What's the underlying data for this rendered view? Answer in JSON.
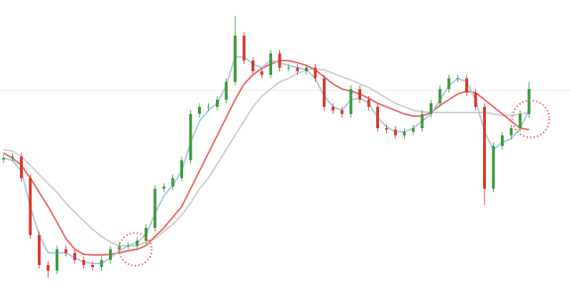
{
  "chart_data": {
    "type": "candlestick",
    "x": [
      0,
      1,
      2,
      3,
      4,
      5,
      6,
      7,
      8,
      9,
      10,
      11,
      12,
      13,
      14,
      15,
      16,
      17,
      18,
      19,
      20,
      21,
      22,
      23,
      24,
      25,
      26,
      27,
      28,
      29,
      30,
      31,
      32,
      33,
      34,
      35,
      36,
      37,
      38,
      39,
      40,
      41,
      42,
      43,
      44,
      45,
      46,
      47,
      48,
      49,
      50,
      51,
      52,
      53,
      54,
      55,
      56,
      57,
      58,
      59
    ],
    "open": [
      186,
      188,
      190,
      160,
      80,
      38,
      30,
      60,
      55,
      45,
      38,
      35,
      45,
      60,
      65,
      65,
      72,
      90,
      145,
      148,
      160,
      185,
      250,
      260,
      260,
      270,
      295,
      360,
      325,
      310,
      305,
      335,
      315,
      315,
      310,
      315,
      300,
      260,
      255,
      250,
      285,
      270,
      260,
      230,
      228,
      220,
      225,
      230,
      250,
      265,
      285,
      300,
      300,
      280,
      260,
      145,
      205,
      220,
      230,
      250
    ],
    "high": [
      193,
      195,
      195,
      165,
      85,
      43,
      65,
      65,
      60,
      50,
      43,
      50,
      65,
      70,
      70,
      77,
      95,
      150,
      153,
      165,
      190,
      255,
      265,
      265,
      275,
      300,
      388,
      365,
      330,
      315,
      340,
      340,
      320,
      320,
      320,
      320,
      305,
      265,
      260,
      290,
      290,
      275,
      265,
      235,
      233,
      230,
      235,
      255,
      270,
      290,
      305,
      305,
      305,
      285,
      265,
      210,
      225,
      235,
      255,
      295
    ],
    "low": [
      181,
      183,
      155,
      75,
      33,
      20,
      25,
      50,
      40,
      33,
      30,
      30,
      40,
      55,
      60,
      60,
      67,
      85,
      140,
      143,
      155,
      180,
      245,
      255,
      255,
      265,
      290,
      320,
      305,
      300,
      300,
      310,
      310,
      305,
      305,
      295,
      255,
      250,
      245,
      245,
      265,
      255,
      225,
      223,
      215,
      215,
      220,
      225,
      245,
      260,
      280,
      295,
      275,
      255,
      122,
      140,
      200,
      215,
      225,
      245
    ],
    "close": [
      188,
      190,
      160,
      80,
      38,
      30,
      60,
      55,
      45,
      38,
      35,
      45,
      60,
      65,
      65,
      72,
      90,
      145,
      148,
      160,
      185,
      250,
      260,
      260,
      270,
      295,
      360,
      325,
      310,
      305,
      335,
      315,
      315,
      310,
      315,
      300,
      260,
      255,
      250,
      285,
      270,
      260,
      230,
      228,
      220,
      225,
      230,
      250,
      265,
      285,
      300,
      300,
      280,
      260,
      145,
      205,
      220,
      230,
      250,
      285
    ],
    "up_color": "#3f9a3f",
    "down_color": "#d9382c",
    "series": [
      {
        "color": "#cfcfcf",
        "values": [
          200,
          198,
          190,
          178,
          165,
          152,
          140,
          125,
          112,
          100,
          88,
          78,
          70,
          65,
          65,
          65,
          70,
          75,
          85,
          95,
          108,
          125,
          145,
          160,
          180,
          200,
          220,
          240,
          260,
          275,
          285,
          295,
          300,
          307,
          312,
          313,
          312,
          307,
          302,
          298,
          292,
          287,
          280,
          272,
          265,
          260,
          255,
          253,
          252,
          252,
          252,
          252,
          252,
          252,
          252,
          250,
          248,
          248,
          250,
          252
        ]
      },
      {
        "color": "#f06464",
        "values": [
          195,
          188,
          178,
          160,
          140,
          120,
          98,
          75,
          60,
          53,
          52,
          52,
          53,
          55,
          58,
          60,
          65,
          78,
          90,
          105,
          120,
          145,
          170,
          195,
          220,
          245,
          270,
          292,
          305,
          314,
          320,
          325,
          325,
          322,
          318,
          312,
          302,
          292,
          285,
          282,
          278,
          272,
          265,
          260,
          255,
          250,
          247,
          247,
          252,
          262,
          270,
          278,
          282,
          280,
          270,
          260,
          250,
          240,
          230,
          228
        ]
      },
      {
        "color": "#a9c9e6",
        "values": [
          188,
          185,
          170,
          120,
          80,
          55,
          55,
          55,
          48,
          42,
          40,
          40,
          48,
          58,
          65,
          70,
          80,
          110,
          135,
          150,
          170,
          210,
          240,
          255,
          265,
          290,
          330,
          330,
          320,
          315,
          325,
          322,
          318,
          315,
          312,
          300,
          275,
          260,
          255,
          270,
          272,
          265,
          245,
          232,
          225,
          225,
          230,
          240,
          250,
          270,
          290,
          300,
          295,
          270,
          225,
          200,
          210,
          215,
          230,
          255
        ]
      }
    ],
    "reference_line": {
      "value": 283,
      "color": "#d9edd5"
    },
    "xlim": [
      -0.4,
      63.6
    ],
    "ylim": [
      0,
      410
    ]
  }
}
